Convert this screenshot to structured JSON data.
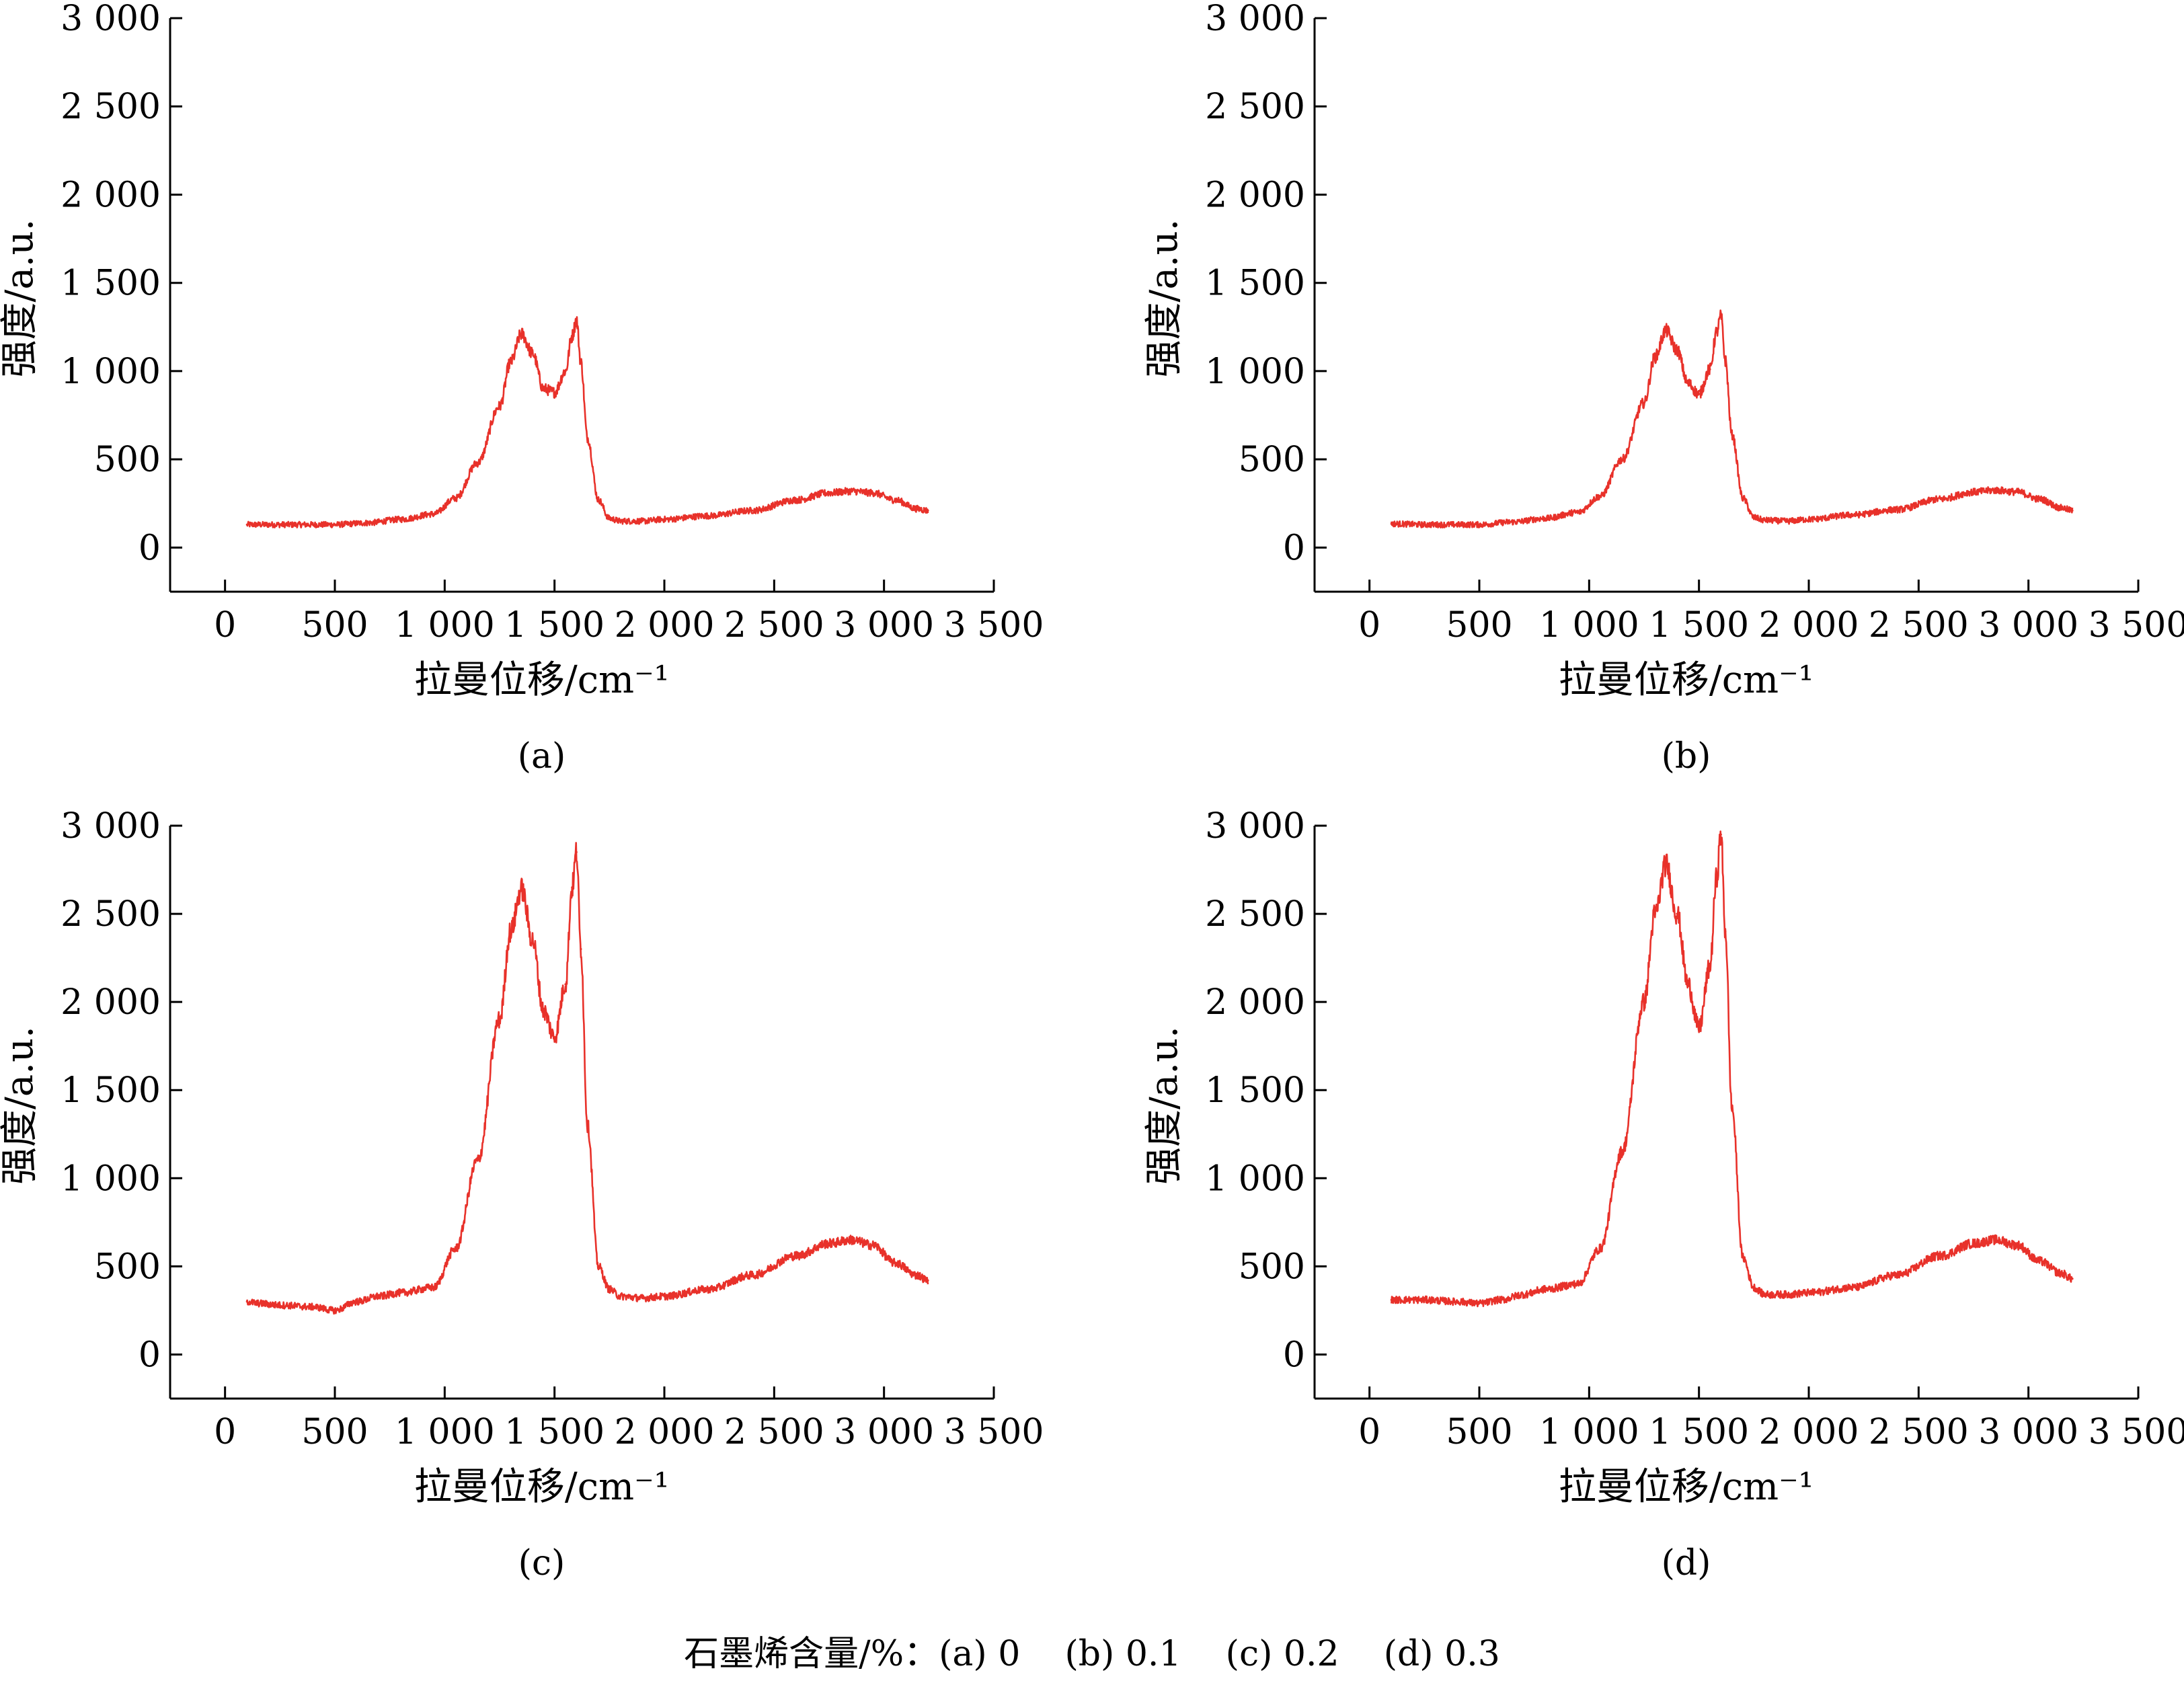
{
  "caption": {
    "label": "石墨烯含量/%：",
    "items": [
      "(a) 0",
      "(b) 0.1",
      "(c) 0.2",
      "(d) 0.3"
    ]
  },
  "colors": {
    "series": "#e8312a",
    "axis": "#000000"
  },
  "chart_data": [
    {
      "type": "line",
      "panel_label": "(a)",
      "xlabel": "拉曼位移/cm⁻¹",
      "ylabel": "强度/a.u.",
      "xlim": [
        -250,
        3500
      ],
      "ylim": [
        -250,
        3000
      ],
      "xticks": [
        0,
        500,
        1000,
        1500,
        2000,
        2500,
        3000,
        3500
      ],
      "xtick_labels": [
        "0",
        "500",
        "1 000",
        "1 500",
        "2 000",
        "2 500",
        "3 000",
        "3 500"
      ],
      "yticks": [
        0,
        500,
        1000,
        1500,
        2000,
        2500,
        3000
      ],
      "ytick_labels": [
        "0",
        "500",
        "1 000",
        "1 500",
        "2 000",
        "2 500",
        "3 000"
      ],
      "grid": false,
      "series": [
        {
          "x": [
            100,
            250,
            400,
            500,
            650,
            800,
            950,
            1050,
            1150,
            1250,
            1300,
            1350,
            1400,
            1450,
            1500,
            1550,
            1580,
            1600,
            1620,
            1650,
            1700,
            1750,
            1800,
            1900,
            2000,
            2200,
            2400,
            2600,
            2750,
            2850,
            2950,
            3050,
            3150,
            3200
          ],
          "y": [
            130,
            130,
            130,
            130,
            140,
            160,
            190,
            280,
            480,
            800,
            1050,
            1210,
            1100,
            900,
            880,
            1000,
            1200,
            1290,
            1050,
            620,
            270,
            165,
            150,
            150,
            160,
            180,
            210,
            270,
            310,
            320,
            310,
            270,
            220,
            210
          ]
        }
      ]
    },
    {
      "type": "line",
      "panel_label": "(b)",
      "xlabel": "拉曼位移/cm⁻¹",
      "ylabel": "强度/a.u.",
      "xlim": [
        -250,
        3500
      ],
      "ylim": [
        -250,
        3000
      ],
      "xticks": [
        0,
        500,
        1000,
        1500,
        2000,
        2500,
        3000,
        3500
      ],
      "xtick_labels": [
        "0",
        "500",
        "1 000",
        "1 500",
        "2 000",
        "2 500",
        "3 000",
        "3 500"
      ],
      "yticks": [
        0,
        500,
        1000,
        1500,
        2000,
        2500,
        3000
      ],
      "ytick_labels": [
        "0",
        "500",
        "1 000",
        "1 500",
        "2 000",
        "2 500",
        "3 000"
      ],
      "grid": false,
      "series": [
        {
          "x": [
            100,
            250,
            400,
            500,
            650,
            800,
            950,
            1050,
            1150,
            1250,
            1300,
            1350,
            1400,
            1450,
            1500,
            1550,
            1580,
            1600,
            1620,
            1650,
            1700,
            1750,
            1800,
            1900,
            2000,
            2200,
            2400,
            2600,
            2750,
            2850,
            2950,
            3050,
            3150,
            3200
          ],
          "y": [
            135,
            130,
            130,
            130,
            145,
            165,
            200,
            290,
            500,
            820,
            1080,
            1230,
            1120,
            930,
            870,
            1010,
            1220,
            1310,
            1060,
            640,
            280,
            170,
            155,
            150,
            160,
            185,
            215,
            275,
            315,
            325,
            315,
            275,
            225,
            210
          ]
        }
      ]
    },
    {
      "type": "line",
      "panel_label": "(c)",
      "xlabel": "拉曼位移/cm⁻¹",
      "ylabel": "强度/a.u.",
      "xlim": [
        -250,
        3500
      ],
      "ylim": [
        -250,
        3000
      ],
      "xticks": [
        0,
        500,
        1000,
        1500,
        2000,
        2500,
        3000,
        3500
      ],
      "xtick_labels": [
        "0",
        "500",
        "1 000",
        "1 500",
        "2 000",
        "2 500",
        "3 000",
        "3 500"
      ],
      "yticks": [
        0,
        500,
        1000,
        1500,
        2000,
        2500,
        3000
      ],
      "ytick_labels": [
        "0",
        "500",
        "1 000",
        "1 500",
        "2 000",
        "2 500",
        "3 000"
      ],
      "grid": false,
      "series": [
        {
          "x": [
            100,
            150,
            250,
            400,
            500,
            600,
            700,
            800,
            950,
            1050,
            1150,
            1250,
            1300,
            1350,
            1400,
            1450,
            1500,
            1550,
            1580,
            1600,
            1620,
            1650,
            1700,
            1750,
            1800,
            1900,
            2000,
            2200,
            2400,
            2600,
            2750,
            2850,
            2950,
            3050,
            3150,
            3200
          ],
          "y": [
            300,
            290,
            280,
            270,
            250,
            300,
            330,
            350,
            380,
            600,
            1100,
            1900,
            2400,
            2640,
            2350,
            1950,
            1800,
            2100,
            2650,
            2850,
            2300,
            1300,
            500,
            370,
            330,
            320,
            330,
            370,
            450,
            560,
            630,
            650,
            620,
            520,
            450,
            420
          ]
        }
      ]
    },
    {
      "type": "line",
      "panel_label": "(d)",
      "xlabel": "拉曼位移/cm⁻¹",
      "ylabel": "强度/a.u.",
      "xlim": [
        -250,
        3500
      ],
      "ylim": [
        -250,
        3000
      ],
      "xticks": [
        0,
        500,
        1000,
        1500,
        2000,
        2500,
        3000,
        3500
      ],
      "xtick_labels": [
        "0",
        "500",
        "1 000",
        "1 500",
        "2 000",
        "2 500",
        "3 000",
        "3 500"
      ],
      "yticks": [
        0,
        500,
        1000,
        1500,
        2000,
        2500,
        3000
      ],
      "ytick_labels": [
        "0",
        "500",
        "1 000",
        "1 500",
        "2 000",
        "2 500",
        "3 000"
      ],
      "grid": false,
      "series": [
        {
          "x": [
            100,
            250,
            400,
            500,
            600,
            700,
            800,
            950,
            1050,
            1150,
            1250,
            1300,
            1350,
            1400,
            1450,
            1500,
            1550,
            1580,
            1600,
            1620,
            1650,
            1700,
            1750,
            1800,
            1900,
            2000,
            2200,
            2400,
            2600,
            2750,
            2850,
            2950,
            3050,
            3150,
            3200
          ],
          "y": [
            310,
            310,
            300,
            290,
            310,
            340,
            370,
            400,
            600,
            1150,
            2000,
            2500,
            2780,
            2500,
            2100,
            1850,
            2200,
            2700,
            2950,
            2400,
            1400,
            550,
            380,
            340,
            340,
            350,
            380,
            450,
            560,
            630,
            650,
            620,
            530,
            460,
            430
          ]
        }
      ]
    }
  ]
}
